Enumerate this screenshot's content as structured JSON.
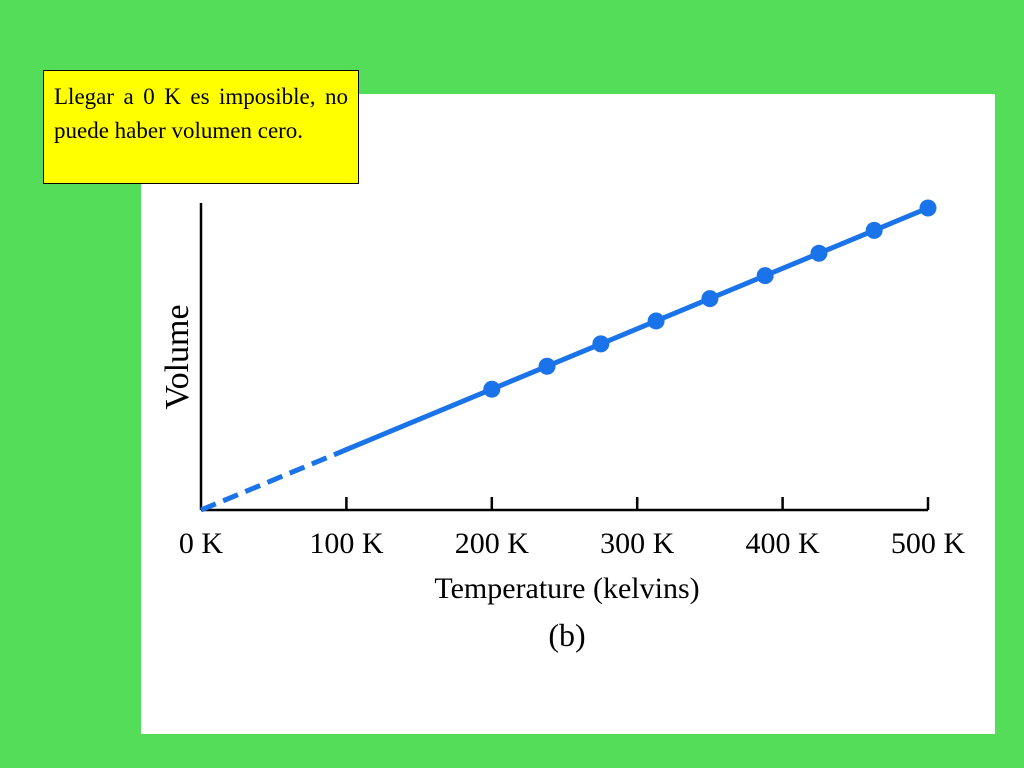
{
  "callout": {
    "text": "Llegar a 0 K es imposible, no puede haber volumen cero."
  },
  "colors": {
    "background": "#54dd58",
    "panel": "#ffffff",
    "callout_bg": "#ffff00",
    "series": "#1a73e8"
  },
  "chart_data": {
    "type": "line",
    "xlabel": "Temperature (kelvins)",
    "ylabel": "Volume",
    "caption": "(b)",
    "x_ticks": [
      0,
      100,
      200,
      300,
      400,
      500
    ],
    "x_tick_labels": [
      "0 K",
      "100 K",
      "200 K",
      "300 K",
      "400 K",
      "500 K"
    ],
    "xlim": [
      0,
      500
    ],
    "y_ticks_shown": false,
    "grid": false,
    "series": [
      {
        "points": [
          {
            "x": 200,
            "y": 200
          },
          {
            "x": 238,
            "y": 238
          },
          {
            "x": 275,
            "y": 275
          },
          {
            "x": 313,
            "y": 313
          },
          {
            "x": 350,
            "y": 350
          },
          {
            "x": 388,
            "y": 388
          },
          {
            "x": 425,
            "y": 425
          },
          {
            "x": 463,
            "y": 463
          },
          {
            "x": 500,
            "y": 500
          }
        ],
        "measured_from": 100,
        "extrapolated_range": [
          0,
          100
        ]
      }
    ]
  }
}
